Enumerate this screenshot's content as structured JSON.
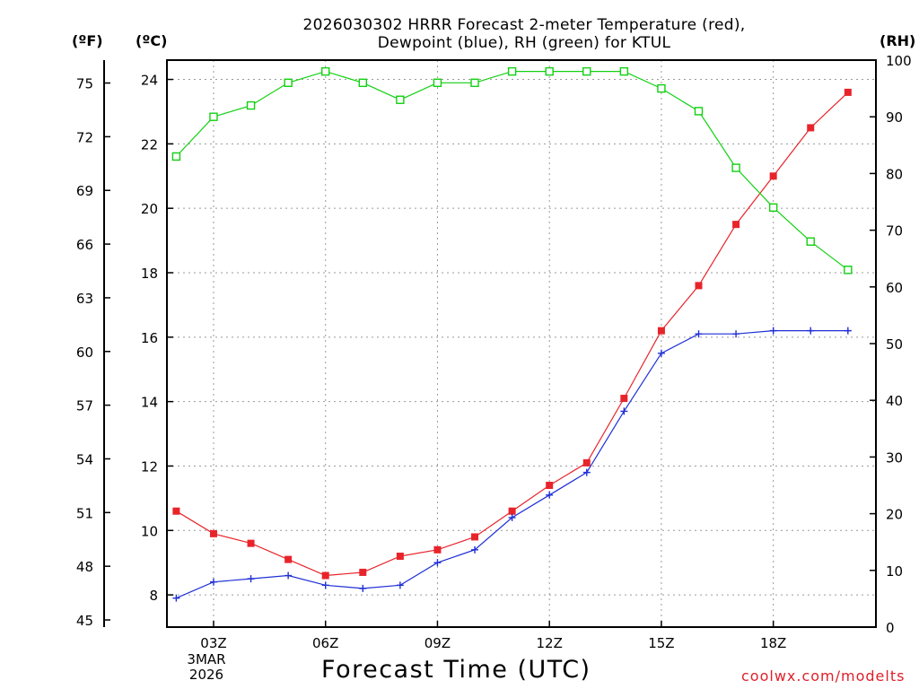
{
  "title_line1": "2026030302 HRRR Forecast 2-meter Temperature (red),",
  "title_line2": "Dewpoint (blue), RH (green) for KTUL",
  "left_outer_unit": "(ºF)",
  "left_inner_unit": "(ºC)",
  "right_unit": "(RH)",
  "xlabel": "Forecast Time (UTC)",
  "credit": "coolwx.com/modelts",
  "date_line1": "3MAR",
  "date_line2": "2026",
  "colors": {
    "temperature": "#e8242b",
    "dewpoint": "#1f2fd6",
    "rh": "#12d012",
    "credit": "#e0202a"
  },
  "chart_data": {
    "type": "line",
    "title": "2026030302 HRRR Forecast 2-meter Temperature (red), Dewpoint (blue), RH (green) for KTUL",
    "xlabel": "Forecast Time (UTC)",
    "x_hours": [
      2,
      3,
      4,
      5,
      6,
      7,
      8,
      9,
      10,
      11,
      12,
      13,
      14,
      15,
      16,
      17,
      18,
      19,
      20
    ],
    "xlim": [
      1.75,
      20.75
    ],
    "x_ticks": [
      3,
      6,
      9,
      12,
      15,
      18
    ],
    "x_tick_labels": [
      "03Z",
      "06Z",
      "09Z",
      "12Z",
      "15Z",
      "18Z"
    ],
    "y_celsius": {
      "label": "(ºC)",
      "lim": [
        7.0,
        24.6
      ],
      "ticks": [
        8,
        10,
        12,
        14,
        16,
        18,
        20,
        22,
        24
      ]
    },
    "y_fahrenheit": {
      "label": "(ºF)",
      "ticks": [
        45,
        48,
        51,
        54,
        57,
        60,
        63,
        66,
        69,
        72,
        75
      ]
    },
    "y_rh": {
      "label": "(RH)",
      "lim": [
        0,
        100
      ],
      "ticks": [
        0,
        10,
        20,
        30,
        40,
        50,
        60,
        70,
        80,
        90,
        100
      ]
    },
    "grid": true,
    "series": [
      {
        "name": "Temperature",
        "axis": "celsius",
        "marker": "filled-square",
        "values": [
          10.6,
          9.9,
          9.6,
          9.1,
          8.6,
          8.7,
          9.2,
          9.4,
          9.8,
          10.6,
          11.4,
          12.1,
          14.1,
          16.2,
          17.6,
          19.5,
          21.0,
          22.5,
          23.6
        ]
      },
      {
        "name": "Dewpoint",
        "axis": "celsius",
        "marker": "plus",
        "values": [
          7.9,
          8.4,
          8.5,
          8.6,
          8.3,
          8.2,
          8.3,
          9.0,
          9.4,
          10.4,
          11.1,
          11.8,
          13.7,
          15.5,
          16.1,
          16.1,
          16.2,
          16.2,
          16.2
        ]
      },
      {
        "name": "RH",
        "axis": "rh",
        "marker": "open-square",
        "values": [
          83,
          90,
          92,
          96,
          98,
          96,
          93,
          96,
          96,
          98,
          98,
          98,
          98,
          95,
          91,
          81,
          74,
          68,
          63
        ]
      }
    ]
  }
}
